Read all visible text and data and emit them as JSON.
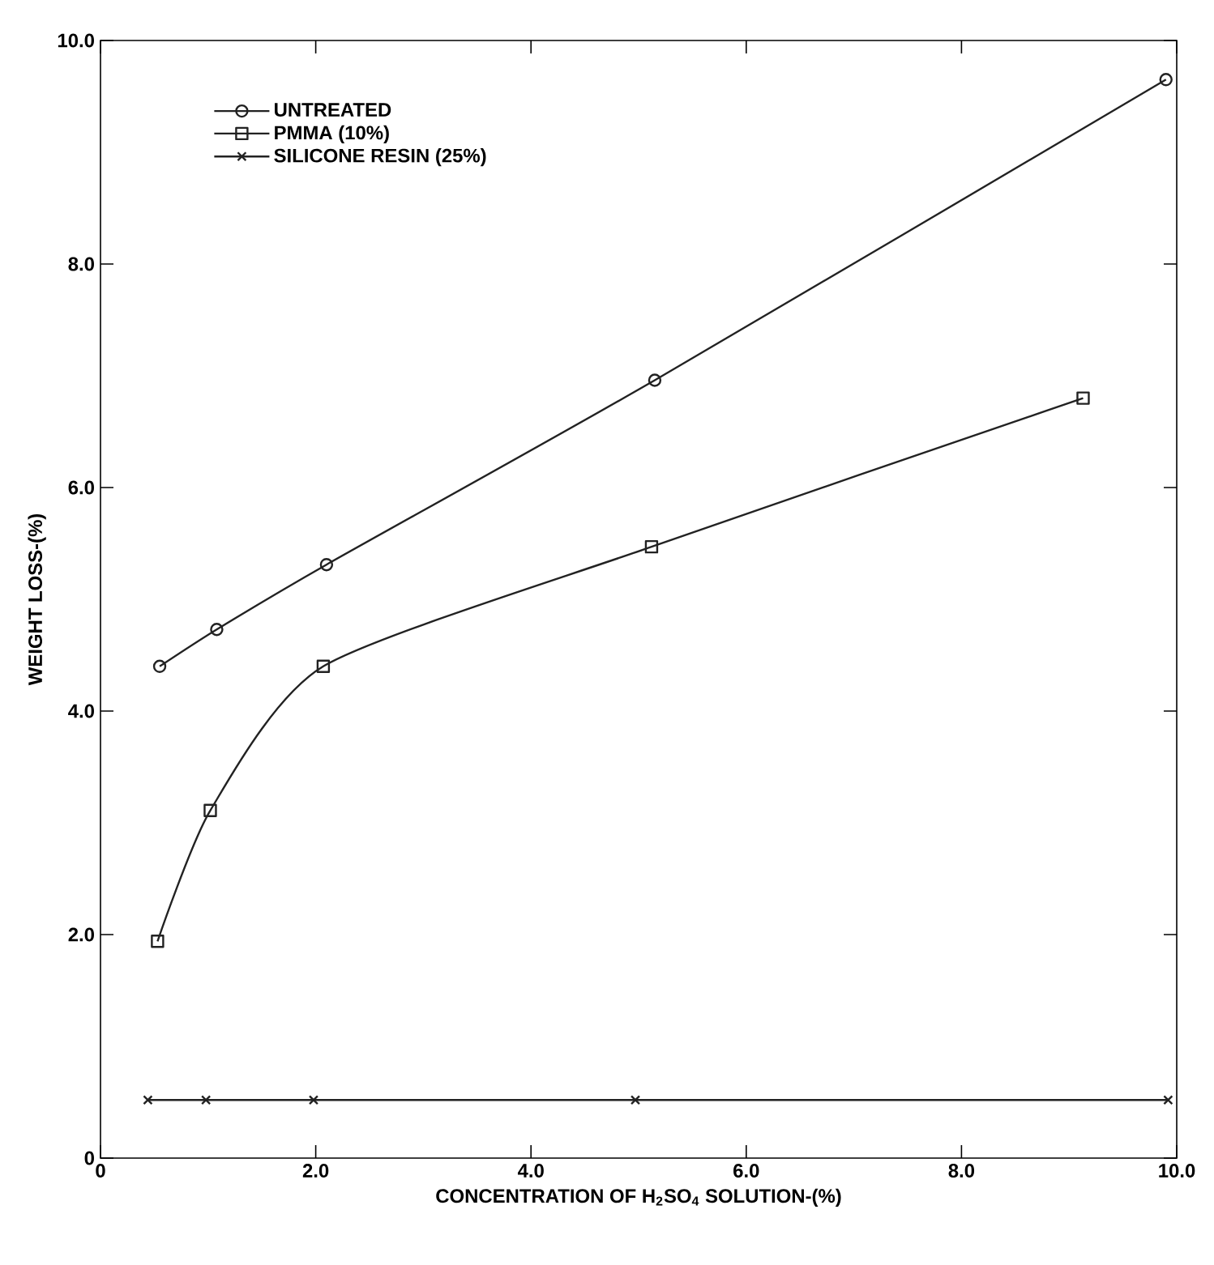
{
  "chart_data": {
    "type": "line",
    "xlabel": "CONCENTRATION OF H$_{2}$SO$_{4}$  SOLUTION-(%)",
    "ylabel": "WEIGHT LOSS-(%)",
    "xlim": [
      0,
      10
    ],
    "ylim": [
      0,
      10
    ],
    "xticks": [
      {
        "value": 0,
        "label": "0"
      },
      {
        "value": 2,
        "label": "2.0"
      },
      {
        "value": 4,
        "label": "4.0"
      },
      {
        "value": 6,
        "label": "6.0"
      },
      {
        "value": 8,
        "label": "8.0"
      },
      {
        "value": 10,
        "label": "10.0"
      }
    ],
    "yticks": [
      {
        "value": 0,
        "label": "0"
      },
      {
        "value": 2,
        "label": "2.0"
      },
      {
        "value": 4,
        "label": "4.0"
      },
      {
        "value": 6,
        "label": "6.0"
      },
      {
        "value": 8,
        "label": "8.0"
      },
      {
        "value": 10,
        "label": "10.0"
      }
    ],
    "legend": "top left",
    "grid": false,
    "line_style": "solid",
    "series": [
      {
        "name": "UNTREATED",
        "color": "#222222",
        "marker": "circle",
        "x": [
          0.55,
          1.08,
          2.1,
          5.15,
          9.9
        ],
        "values": [
          4.4,
          4.73,
          5.31,
          6.96,
          9.65
        ]
      },
      {
        "name": "PMMA (10%)",
        "color": "#222222",
        "marker": "square",
        "x": [
          0.53,
          1.02,
          2.07,
          5.12,
          9.13
        ],
        "values": [
          1.94,
          3.11,
          4.4,
          5.47,
          6.8
        ]
      },
      {
        "name": "SILICONE RESIN (25%)",
        "color": "#222222",
        "marker": "cross",
        "x": [
          0.44,
          0.98,
          1.98,
          4.97,
          9.92
        ],
        "values": [
          0.52,
          0.52,
          0.52,
          0.52,
          0.52
        ]
      }
    ]
  }
}
